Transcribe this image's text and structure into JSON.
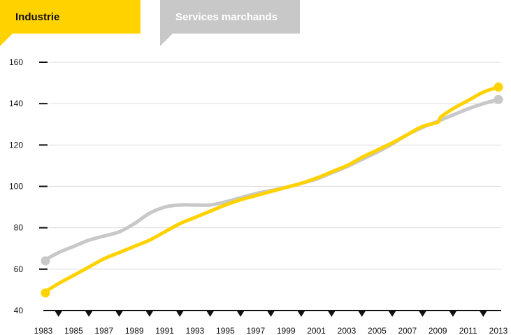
{
  "legend": {
    "industrie": "Industrie",
    "services": "Services marchands"
  },
  "colors": {
    "industrie": "#ffd200",
    "services": "#c8c8c8",
    "grid": "#dddddd",
    "axis": "#111111"
  },
  "chart_data": {
    "type": "line",
    "title": "",
    "xlabel": "",
    "ylabel": "",
    "xlim": [
      1983,
      2013
    ],
    "ylim": [
      40,
      160
    ],
    "yticks": [
      40,
      60,
      80,
      100,
      120,
      140,
      160
    ],
    "xticks": [
      1983,
      1985,
      1987,
      1989,
      1991,
      1993,
      1995,
      1997,
      1999,
      2001,
      2003,
      2005,
      2007,
      2009,
      2011,
      2013
    ],
    "grid": true,
    "legend_position": "top-left",
    "series": [
      {
        "name": "Industrie",
        "x": [
          1983,
          1984,
          1985,
          1986,
          1987,
          1988,
          1989,
          1990,
          1991,
          1992,
          1993,
          1994,
          1995,
          1996,
          1997,
          1998,
          1999,
          2000,
          2001,
          2002,
          2003,
          2004,
          2005,
          2006,
          2007,
          2008,
          2009,
          2009.2,
          2010,
          2011,
          2012,
          2013
        ],
        "values": [
          48.5,
          53,
          57,
          61,
          65,
          68,
          71,
          74,
          78,
          82,
          85,
          88,
          91,
          93.5,
          95.5,
          97.5,
          99.5,
          101.5,
          104,
          107,
          110,
          114,
          117.5,
          121,
          125,
          129,
          131,
          133.5,
          137.5,
          141.5,
          145.5,
          148
        ]
      },
      {
        "name": "Services marchands",
        "x": [
          1983,
          1984,
          1985,
          1986,
          1987,
          1988,
          1989,
          1990,
          1991,
          1992,
          1993,
          1994,
          1995,
          1996,
          1997,
          1998,
          1999,
          2000,
          2001,
          2002,
          2003,
          2004,
          2005,
          2006,
          2007,
          2008,
          2009,
          2010,
          2011,
          2012,
          2013
        ],
        "values": [
          64,
          68,
          71,
          74,
          76,
          78,
          82,
          87,
          90,
          91,
          91,
          91,
          92.5,
          94.5,
          96.5,
          98,
          99.5,
          101.5,
          103.5,
          106.5,
          109.5,
          113,
          116.5,
          120.5,
          125,
          128.5,
          131.5,
          134.5,
          137.5,
          140,
          142
        ]
      }
    ]
  }
}
